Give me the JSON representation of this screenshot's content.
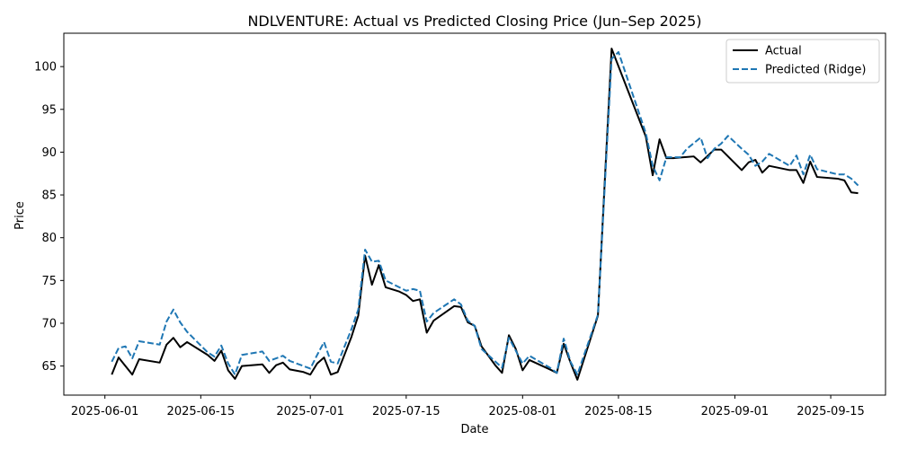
{
  "chart_data": {
    "type": "line",
    "title": "NDLVENTURE: Actual vs Predicted Closing Price (Jun–Sep 2025)",
    "xlabel": "Date",
    "ylabel": "Price",
    "xlim": [
      "2025-05-26",
      "2025-09-23"
    ],
    "ylim": [
      61.6,
      103.9
    ],
    "x_ticks": [
      "2025-06-01",
      "2025-06-15",
      "2025-07-01",
      "2025-07-15",
      "2025-08-01",
      "2025-08-15",
      "2025-09-01",
      "2025-09-15"
    ],
    "y_ticks": [
      65,
      70,
      75,
      80,
      85,
      90,
      95,
      100
    ],
    "grid": false,
    "legend_position": "top-right",
    "series": [
      {
        "name": "Actual",
        "color": "#000000",
        "style": "solid",
        "points": [
          [
            "2025-06-02",
            64.0
          ],
          [
            "2025-06-03",
            66.0
          ],
          [
            "2025-06-05",
            64.0
          ],
          [
            "2025-06-06",
            65.8
          ],
          [
            "2025-06-09",
            65.4
          ],
          [
            "2025-06-10",
            67.5
          ],
          [
            "2025-06-11",
            68.3
          ],
          [
            "2025-06-12",
            67.2
          ],
          [
            "2025-06-13",
            67.8
          ],
          [
            "2025-06-16",
            66.3
          ],
          [
            "2025-06-17",
            65.6
          ],
          [
            "2025-06-18",
            66.8
          ],
          [
            "2025-06-19",
            64.5
          ],
          [
            "2025-06-20",
            63.5
          ],
          [
            "2025-06-21",
            65.0
          ],
          [
            "2025-06-24",
            65.2
          ],
          [
            "2025-06-25",
            64.2
          ],
          [
            "2025-06-26",
            65.1
          ],
          [
            "2025-06-27",
            65.4
          ],
          [
            "2025-06-28",
            64.6
          ],
          [
            "2025-06-30",
            64.3
          ],
          [
            "2025-07-01",
            64.0
          ],
          [
            "2025-07-02",
            65.3
          ],
          [
            "2025-07-03",
            66.0
          ],
          [
            "2025-07-04",
            64.0
          ],
          [
            "2025-07-05",
            64.3
          ],
          [
            "2025-07-07",
            68.4
          ],
          [
            "2025-07-08",
            70.9
          ],
          [
            "2025-07-09",
            77.9
          ],
          [
            "2025-07-10",
            74.5
          ],
          [
            "2025-07-11",
            76.8
          ],
          [
            "2025-07-12",
            74.2
          ],
          [
            "2025-07-14",
            73.7
          ],
          [
            "2025-07-15",
            73.3
          ],
          [
            "2025-07-16",
            72.6
          ],
          [
            "2025-07-17",
            72.8
          ],
          [
            "2025-07-18",
            68.9
          ],
          [
            "2025-07-19",
            70.3
          ],
          [
            "2025-07-22",
            72.0
          ],
          [
            "2025-07-23",
            71.9
          ],
          [
            "2025-07-24",
            70.1
          ],
          [
            "2025-07-25",
            69.7
          ],
          [
            "2025-07-26",
            67.3
          ],
          [
            "2025-07-28",
            65.1
          ],
          [
            "2025-07-29",
            64.2
          ],
          [
            "2025-07-30",
            68.6
          ],
          [
            "2025-07-31",
            67.0
          ],
          [
            "2025-08-01",
            64.5
          ],
          [
            "2025-08-02",
            65.7
          ],
          [
            "2025-08-05",
            64.6
          ],
          [
            "2025-08-06",
            64.2
          ],
          [
            "2025-08-07",
            67.6
          ],
          [
            "2025-08-08",
            65.4
          ],
          [
            "2025-08-09",
            63.4
          ],
          [
            "2025-08-12",
            70.9
          ],
          [
            "2025-08-13",
            86.6
          ],
          [
            "2025-08-14",
            102.1
          ],
          [
            "2025-08-19",
            91.8
          ],
          [
            "2025-08-20",
            87.3
          ],
          [
            "2025-08-21",
            91.5
          ],
          [
            "2025-08-22",
            89.3
          ],
          [
            "2025-08-23",
            89.3
          ],
          [
            "2025-08-26",
            89.5
          ],
          [
            "2025-08-27",
            88.8
          ],
          [
            "2025-08-29",
            90.3
          ],
          [
            "2025-08-30",
            90.3
          ],
          [
            "2025-09-02",
            87.9
          ],
          [
            "2025-09-03",
            88.8
          ],
          [
            "2025-09-04",
            89.1
          ],
          [
            "2025-09-05",
            87.6
          ],
          [
            "2025-09-06",
            88.4
          ],
          [
            "2025-09-09",
            87.9
          ],
          [
            "2025-09-10",
            87.9
          ],
          [
            "2025-09-11",
            86.4
          ],
          [
            "2025-09-12",
            88.9
          ],
          [
            "2025-09-13",
            87.1
          ],
          [
            "2025-09-16",
            86.9
          ],
          [
            "2025-09-17",
            86.7
          ],
          [
            "2025-09-18",
            85.3
          ],
          [
            "2025-09-19",
            85.2
          ]
        ]
      },
      {
        "name": "Predicted (Ridge)",
        "color": "#1f77b4",
        "style": "dashed",
        "points": [
          [
            "2025-06-02",
            65.5
          ],
          [
            "2025-06-03",
            67.1
          ],
          [
            "2025-06-04",
            67.3
          ],
          [
            "2025-06-05",
            65.9
          ],
          [
            "2025-06-06",
            67.9
          ],
          [
            "2025-06-09",
            67.5
          ],
          [
            "2025-06-10",
            70.2
          ],
          [
            "2025-06-11",
            71.6
          ],
          [
            "2025-06-12",
            70.1
          ],
          [
            "2025-06-13",
            69.0
          ],
          [
            "2025-06-16",
            66.6
          ],
          [
            "2025-06-17",
            66.1
          ],
          [
            "2025-06-18",
            67.4
          ],
          [
            "2025-06-19",
            65.3
          ],
          [
            "2025-06-20",
            64.0
          ],
          [
            "2025-06-21",
            66.3
          ],
          [
            "2025-06-24",
            66.7
          ],
          [
            "2025-06-25",
            65.6
          ],
          [
            "2025-06-26",
            65.9
          ],
          [
            "2025-06-27",
            66.2
          ],
          [
            "2025-06-28",
            65.6
          ],
          [
            "2025-06-30",
            65.0
          ],
          [
            "2025-07-01",
            64.7
          ],
          [
            "2025-07-02",
            66.3
          ],
          [
            "2025-07-03",
            67.8
          ],
          [
            "2025-07-04",
            65.5
          ],
          [
            "2025-07-05",
            65.3
          ],
          [
            "2025-07-07",
            69.3
          ],
          [
            "2025-07-08",
            71.6
          ],
          [
            "2025-07-09",
            78.6
          ],
          [
            "2025-07-10",
            77.2
          ],
          [
            "2025-07-11",
            77.3
          ],
          [
            "2025-07-12",
            75.0
          ],
          [
            "2025-07-15",
            73.8
          ],
          [
            "2025-07-16",
            74.0
          ],
          [
            "2025-07-17",
            73.8
          ],
          [
            "2025-07-18",
            70.2
          ],
          [
            "2025-07-19",
            71.2
          ],
          [
            "2025-07-22",
            72.8
          ],
          [
            "2025-07-23",
            72.2
          ],
          [
            "2025-07-24",
            70.3
          ],
          [
            "2025-07-25",
            69.7
          ],
          [
            "2025-07-26",
            67.0
          ],
          [
            "2025-07-29",
            64.8
          ],
          [
            "2025-07-30",
            68.3
          ],
          [
            "2025-08-01",
            65.3
          ],
          [
            "2025-08-02",
            66.2
          ],
          [
            "2025-08-05",
            64.8
          ],
          [
            "2025-08-06",
            64.2
          ],
          [
            "2025-08-07",
            68.2
          ],
          [
            "2025-08-08",
            65.5
          ],
          [
            "2025-08-09",
            64.0
          ],
          [
            "2025-08-12",
            71.0
          ],
          [
            "2025-08-13",
            86.0
          ],
          [
            "2025-08-14",
            100.9
          ],
          [
            "2025-08-15",
            101.7
          ],
          [
            "2025-08-19",
            92.2
          ],
          [
            "2025-08-20",
            88.4
          ],
          [
            "2025-08-21",
            86.7
          ],
          [
            "2025-08-22",
            89.4
          ],
          [
            "2025-08-23",
            89.4
          ],
          [
            "2025-08-24",
            89.4
          ],
          [
            "2025-08-25",
            90.4
          ],
          [
            "2025-08-27",
            91.7
          ],
          [
            "2025-08-28",
            89.3
          ],
          [
            "2025-08-29",
            90.4
          ],
          [
            "2025-08-30",
            91.0
          ],
          [
            "2025-08-31",
            91.9
          ],
          [
            "2025-09-02",
            90.4
          ],
          [
            "2025-09-03",
            89.7
          ],
          [
            "2025-09-04",
            88.4
          ],
          [
            "2025-09-05",
            88.9
          ],
          [
            "2025-09-06",
            89.8
          ],
          [
            "2025-09-09",
            88.4
          ],
          [
            "2025-09-10",
            89.6
          ],
          [
            "2025-09-11",
            87.4
          ],
          [
            "2025-09-12",
            89.7
          ],
          [
            "2025-09-13",
            88.0
          ],
          [
            "2025-09-16",
            87.4
          ],
          [
            "2025-09-17",
            87.4
          ],
          [
            "2025-09-18",
            86.9
          ],
          [
            "2025-09-19",
            86.1
          ]
        ]
      }
    ]
  }
}
